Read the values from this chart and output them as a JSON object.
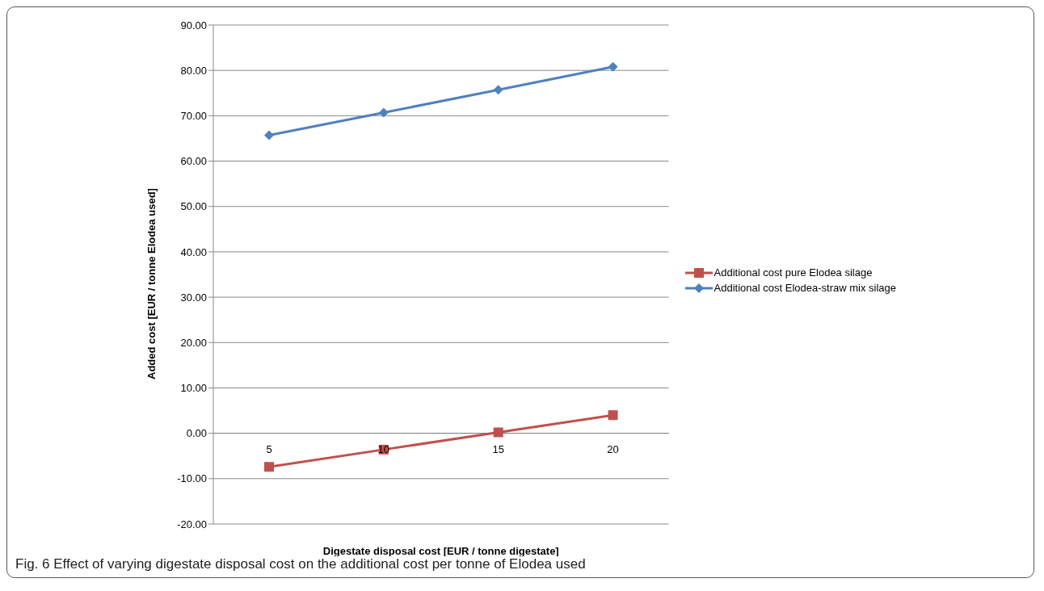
{
  "chart_data": {
    "type": "line",
    "title": "Fig. 6 Effect of varying digestate disposal cost on the additional cost per tonne of Elodea used",
    "xlabel": "Digestate disposal cost [EUR / tonne digestate]",
    "ylabel": "Added cost [EUR / tonne Elodea used]",
    "categories": [
      "5",
      "10",
      "15",
      "20"
    ],
    "series": [
      {
        "name": "Additional cost pure Elodea silage",
        "color": "#c0504d",
        "marker": "square",
        "values": [
          -7.4,
          -3.6,
          0.2,
          4.0
        ]
      },
      {
        "name": "Additional cost Elodea-straw mix silage",
        "color": "#4f81bd",
        "marker": "diamond",
        "values": [
          65.7,
          70.7,
          75.7,
          80.8
        ]
      }
    ],
    "ylim": [
      -20,
      90
    ],
    "yticks": [
      {
        "value": -20,
        "label": "-20.00"
      },
      {
        "value": -10,
        "label": "-10.00"
      },
      {
        "value": 0,
        "label": "0.00"
      },
      {
        "value": 10,
        "label": "10.00"
      },
      {
        "value": 20,
        "label": "20.00"
      },
      {
        "value": 30,
        "label": "30.00"
      },
      {
        "value": 40,
        "label": "40.00"
      },
      {
        "value": 50,
        "label": "50.00"
      },
      {
        "value": 60,
        "label": "60.00"
      },
      {
        "value": 70,
        "label": "70.00"
      },
      {
        "value": 80,
        "label": "80.00"
      },
      {
        "value": 90,
        "label": "90.00"
      }
    ],
    "grid": "y",
    "legend": "right",
    "line_style": "solid"
  }
}
